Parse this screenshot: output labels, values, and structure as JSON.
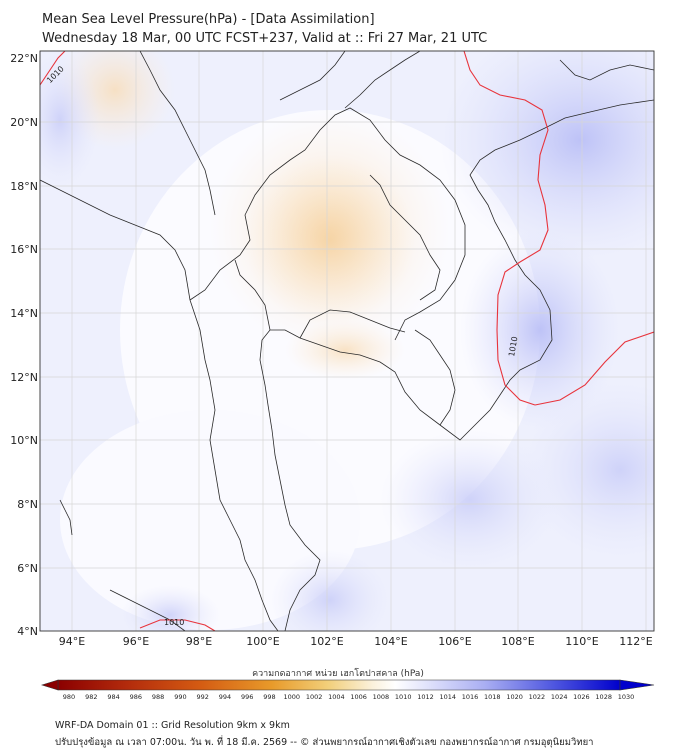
{
  "title": {
    "line1": "Mean Sea Level Pressure(hPa) - [Data Assimilation]",
    "line2": "Wednesday 18 Mar, 00 UTC FCST+237, Valid at :: Fri 27 Mar, 21 UTC"
  },
  "map": {
    "lat_labels": [
      "22°N",
      "20°N",
      "18°N",
      "16°N",
      "14°N",
      "12°N",
      "10°N",
      "8°N",
      "6°N",
      "4°N"
    ],
    "lon_labels": [
      "94°E",
      "96°E",
      "98°E",
      "100°E",
      "102°E",
      "104°E",
      "106°E",
      "108°E",
      "110°E",
      "112°E"
    ],
    "contour_label": "1010",
    "contour_color": "#e8343c"
  },
  "colorbar": {
    "label": "ความกดอากาศ หน่วย เฮกโตปาสคาล (hPa)",
    "ticks": [
      "980",
      "982",
      "984",
      "986",
      "988",
      "990",
      "992",
      "994",
      "996",
      "998",
      "1000",
      "1002",
      "1004",
      "1006",
      "1008",
      "1010",
      "1012",
      "1014",
      "1016",
      "1018",
      "1020",
      "1022",
      "1024",
      "1026",
      "1028",
      "1030"
    ],
    "low_color": "#8b0000",
    "high_color": "#0000cc"
  },
  "footer": {
    "line1": "WRF-DA Domain 01 :: Grid Resolution 9km x 9km",
    "line2": "ปรับปรุงข้อมูล ณ เวลา 07:00น. วัน พ. ที่ 18 มี.ค. 2569 -- © ส่วนพยากรณ์อากาศเชิงตัวเลข กองพยากรณ์อากาศ กรมอุตุนิยมวิทยา"
  }
}
